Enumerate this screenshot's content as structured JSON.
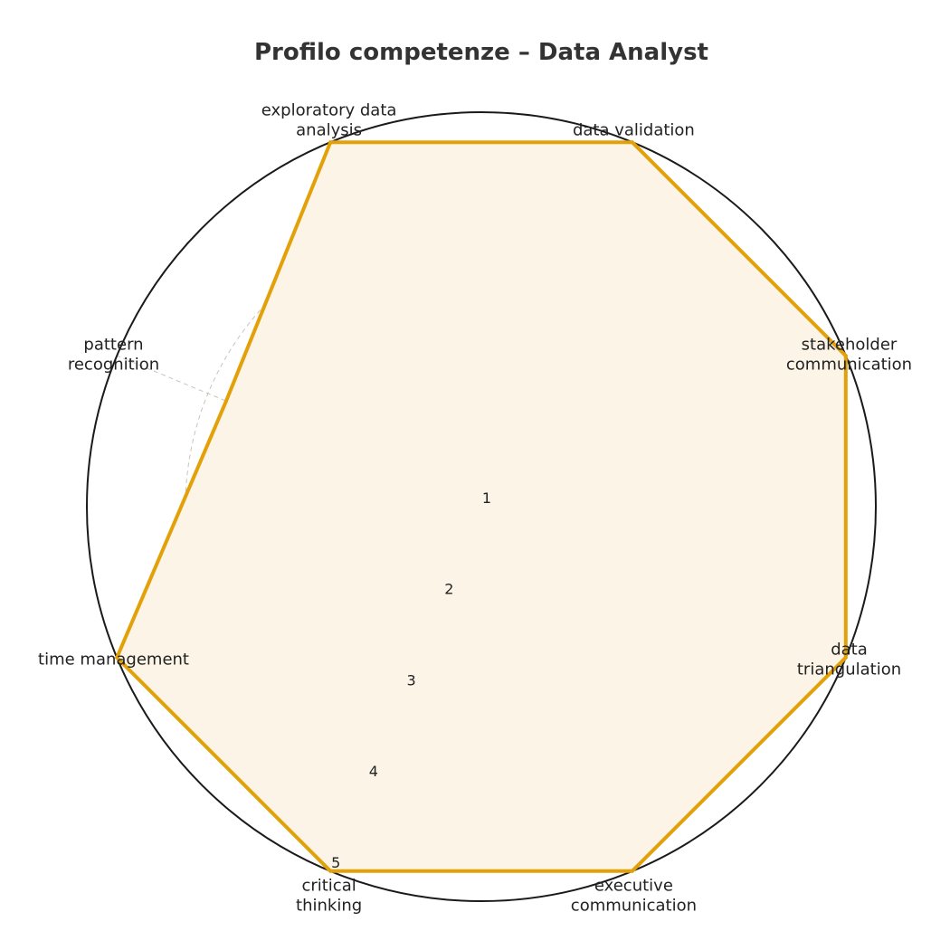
{
  "chart_data": {
    "type": "radar",
    "title": "Profilo competenze – Data Analyst",
    "axes": [
      "data validation",
      "stakeholder communication",
      "data triangulation",
      "executive communication",
      "critical thinking",
      "time management",
      "pattern recognition",
      "exploratory data analysis"
    ],
    "axis_label_lines": [
      [
        "data validation"
      ],
      [
        "stakeholder",
        "communication"
      ],
      [
        "data",
        "triangulation"
      ],
      [
        "executive",
        "communication"
      ],
      [
        "critical",
        "thinking"
      ],
      [
        "time management"
      ],
      [
        "pattern",
        "recognition"
      ],
      [
        "exploratory data",
        "analysis"
      ]
    ],
    "series": [
      {
        "values": [
          5,
          5,
          5,
          5,
          5,
          5,
          3.8,
          5
        ],
        "color": "#E3A008",
        "fill": "#FCF4E6"
      }
    ],
    "radial_ticks": [
      "1",
      "2",
      "3",
      "4",
      "5"
    ],
    "rlim": [
      1,
      5
    ],
    "grid": true
  }
}
